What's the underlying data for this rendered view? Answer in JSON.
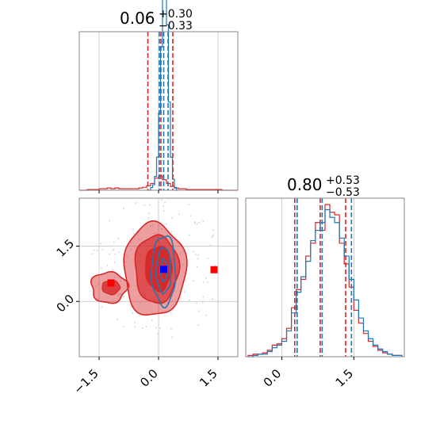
{
  "chart_data": [
    {
      "type": "histogram",
      "panel": "top-left",
      "title": {
        "value": "0.06",
        "plus": "+0.30",
        "minus": "−0.33"
      },
      "xlim": [
        -2.0,
        2.0
      ],
      "grid": true,
      "series": [
        {
          "color": "#d62728",
          "bins": [
            -2.0,
            -1.9,
            -1.8,
            -1.7,
            -1.6,
            -1.5,
            -1.4,
            -1.3,
            -1.2,
            -1.1,
            -1.0,
            -0.9,
            -0.8,
            -0.7,
            -0.6,
            -0.5,
            -0.4,
            -0.3,
            -0.2,
            -0.1,
            0.0,
            0.1,
            0.2,
            0.3,
            0.4,
            0.5,
            0.6,
            0.7,
            0.8,
            0.9,
            1.0,
            1.1,
            1.2,
            1.3,
            1.4,
            1.5,
            1.6,
            1.7,
            1.8,
            1.9
          ],
          "counts": [
            0,
            0,
            1,
            1,
            1,
            2,
            2,
            3,
            2,
            3,
            2,
            2,
            2,
            2,
            2,
            3,
            4,
            6,
            9,
            16,
            19,
            14,
            9,
            5,
            3,
            2,
            2,
            1,
            1,
            1,
            1,
            1,
            1,
            1,
            1,
            1,
            0,
            0,
            0,
            0
          ],
          "quantiles": [
            -0.27,
            0.06,
            0.36
          ]
        },
        {
          "color": "#1f77b4",
          "bins": [
            -0.25,
            -0.2,
            -0.15,
            -0.1,
            -0.05,
            0.0,
            0.05,
            0.1,
            0.15,
            0.2,
            0.25,
            0.3,
            0.35,
            0.4,
            0.45
          ],
          "counts": [
            0,
            1,
            2,
            5,
            12,
            28,
            52,
            86,
            92,
            60,
            32,
            12,
            4,
            1,
            0
          ],
          "quantiles": [
            0.02,
            0.13,
            0.24
          ]
        }
      ],
      "ticks": [
        -1.5,
        0.0,
        1.5
      ]
    },
    {
      "type": "histogram",
      "panel": "bottom-right",
      "title": {
        "value": "0.80",
        "plus": "+0.53",
        "minus": "−0.53"
      },
      "xlim": [
        -0.75,
        2.55
      ],
      "grid": true,
      "x_tick_labels": [
        "0.0",
        "1.5"
      ],
      "x_ticks": [
        0.0,
        1.5
      ],
      "series": [
        {
          "color": "#d62728",
          "bins": [
            -0.7,
            -0.6,
            -0.5,
            -0.4,
            -0.3,
            -0.2,
            -0.1,
            0.0,
            0.1,
            0.2,
            0.3,
            0.4,
            0.5,
            0.6,
            0.7,
            0.8,
            0.9,
            1.0,
            1.1,
            1.2,
            1.3,
            1.4,
            1.5,
            1.6,
            1.7,
            1.8,
            1.9,
            2.0,
            2.1,
            2.2,
            2.3,
            2.4
          ],
          "counts": [
            1,
            2,
            2,
            3,
            5,
            9,
            10,
            14,
            22,
            38,
            52,
            60,
            78,
            88,
            104,
            98,
            118,
            112,
            110,
            88,
            72,
            54,
            36,
            26,
            18,
            12,
            8,
            5,
            3,
            2,
            1,
            1
          ],
          "quantiles": [
            0.27,
            0.8,
            1.33
          ]
        },
        {
          "color": "#1f77b4",
          "bins": [
            -0.7,
            -0.6,
            -0.5,
            -0.4,
            -0.3,
            -0.2,
            -0.1,
            0.0,
            0.1,
            0.2,
            0.3,
            0.4,
            0.5,
            0.6,
            0.7,
            0.8,
            0.9,
            1.0,
            1.1,
            1.2,
            1.3,
            1.4,
            1.5,
            1.6,
            1.7,
            1.8,
            1.9,
            2.0,
            2.1,
            2.2,
            2.3,
            2.4
          ],
          "counts": [
            0,
            1,
            2,
            2,
            4,
            7,
            9,
            12,
            20,
            34,
            50,
            62,
            74,
            90,
            98,
            104,
            114,
            108,
            104,
            92,
            78,
            60,
            44,
            30,
            20,
            14,
            9,
            6,
            4,
            2,
            1,
            1
          ],
          "quantiles": [
            0.32,
            0.84,
            1.45
          ]
        }
      ]
    },
    {
      "type": "contour-scatter",
      "panel": "bottom-left",
      "xlim": [
        -2.0,
        2.0
      ],
      "ylim": [
        -1.5,
        2.8
      ],
      "grid": true,
      "x_ticks": [
        -1.5,
        0.0,
        1.5
      ],
      "x_tick_labels": [
        "−1.5",
        "0.0",
        "1.5"
      ],
      "y_ticks": [
        0.0,
        1.5
      ],
      "y_tick_labels": [
        "0.0",
        "1.5"
      ],
      "red_levels": [
        {
          "cx": -0.1,
          "cy": 0.86,
          "rx": 0.78,
          "ry": 1.26,
          "opacity": 0.45
        },
        {
          "cx": -0.05,
          "cy": 0.88,
          "rx": 0.55,
          "ry": 0.92,
          "opacity": 0.65
        },
        {
          "cx": 0.0,
          "cy": 0.9,
          "rx": 0.33,
          "ry": 0.6,
          "opacity": 0.95
        }
      ],
      "red_secondary": {
        "cx": -1.25,
        "cy": 0.38,
        "rx": 0.45,
        "ry": 0.42
      },
      "blue_levels": [
        {
          "cx": 0.13,
          "cy": 0.84,
          "rx": 0.3,
          "ry": 0.95
        },
        {
          "cx": 0.13,
          "cy": 0.84,
          "rx": 0.18,
          "ry": 0.62
        },
        {
          "cx": 0.13,
          "cy": 0.84,
          "rx": 0.08,
          "ry": 0.3
        }
      ],
      "markers": [
        {
          "x": 0.13,
          "y": 0.87,
          "color": "#0000ff",
          "shape": "square"
        },
        {
          "x": -1.2,
          "y": 0.5,
          "color": "#ff0000",
          "shape": "square"
        },
        {
          "x": 1.4,
          "y": 0.86,
          "color": "#ff0000",
          "shape": "square"
        }
      ]
    }
  ],
  "colors": {
    "red": "#d62728",
    "blue": "#1f77b4",
    "grid": "#b0b0b0"
  }
}
